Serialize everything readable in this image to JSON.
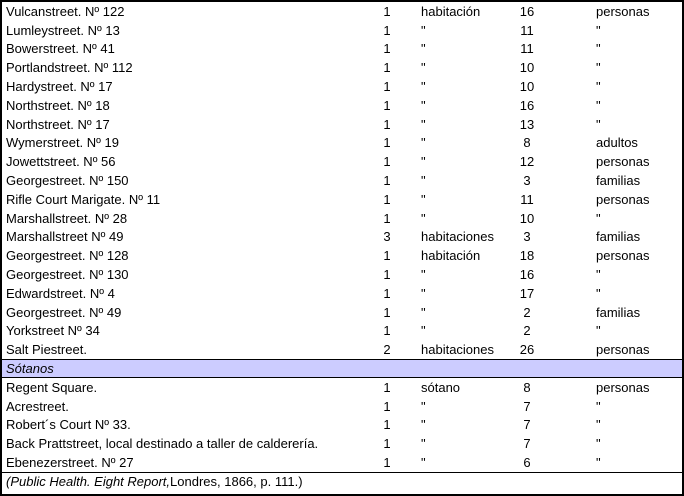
{
  "colors": {
    "background": "#ffffff",
    "text": "#000000",
    "border": "#000000",
    "section_header_bg": "#ccccff"
  },
  "table": {
    "main_rows": [
      {
        "place": "Vulcanstreet. Nº 122",
        "rooms_count": "1",
        "rooms_unit": "habitación",
        "occupants_count": "16",
        "occupants_unit": "personas"
      },
      {
        "place": "Lumleystreet. Nº 13",
        "rooms_count": "1",
        "rooms_unit": "\"",
        "occupants_count": "11",
        "occupants_unit": "\""
      },
      {
        "place": "Bowerstreet. Nº 41",
        "rooms_count": "1",
        "rooms_unit": "\"",
        "occupants_count": "11",
        "occupants_unit": "\""
      },
      {
        "place": "Portlandstreet. Nº 112",
        "rooms_count": "1",
        "rooms_unit": "\"",
        "occupants_count": "10",
        "occupants_unit": "\""
      },
      {
        "place": "Hardystreet. Nº 17",
        "rooms_count": "1",
        "rooms_unit": "\"",
        "occupants_count": "10",
        "occupants_unit": "\""
      },
      {
        "place": "Northstreet. Nº 18",
        "rooms_count": "1",
        "rooms_unit": "\"",
        "occupants_count": "16",
        "occupants_unit": "\""
      },
      {
        "place": "Northstreet. Nº 17",
        "rooms_count": "1",
        "rooms_unit": "\"",
        "occupants_count": "13",
        "occupants_unit": "\""
      },
      {
        "place": "Wymerstreet. Nº 19",
        "rooms_count": "1",
        "rooms_unit": "\"",
        "occupants_count": "8",
        "occupants_unit": "adultos"
      },
      {
        "place": "Jowettstreet. Nº 56",
        "rooms_count": "1",
        "rooms_unit": "\"",
        "occupants_count": "12",
        "occupants_unit": "personas"
      },
      {
        "place": "Georgestreet. Nº 150",
        "rooms_count": "1",
        "rooms_unit": "\"",
        "occupants_count": "3",
        "occupants_unit": "familias"
      },
      {
        "place": "Rifle Court Marigate. Nº 11",
        "rooms_count": "1",
        "rooms_unit": "\"",
        "occupants_count": "11",
        "occupants_unit": "personas"
      },
      {
        "place": "Marshallstreet. Nº 28",
        "rooms_count": "1",
        "rooms_unit": "\"",
        "occupants_count": "10",
        "occupants_unit": "\""
      },
      {
        "place": "Marshallstreet Nº 49",
        "rooms_count": "3",
        "rooms_unit": "habitaciones",
        "occupants_count": "3",
        "occupants_unit": "familias"
      },
      {
        "place": "Georgestreet. Nº 128",
        "rooms_count": "1",
        "rooms_unit": "habitación",
        "occupants_count": "18",
        "occupants_unit": "personas"
      },
      {
        "place": "Georgestreet. Nº 130",
        "rooms_count": "1",
        "rooms_unit": "\"",
        "occupants_count": "16",
        "occupants_unit": "\""
      },
      {
        "place": "Edwardstreet. Nº 4",
        "rooms_count": "1",
        "rooms_unit": "\"",
        "occupants_count": "17",
        "occupants_unit": "\""
      },
      {
        "place": "Georgestreet. Nº 49",
        "rooms_count": "1",
        "rooms_unit": "\"",
        "occupants_count": "2",
        "occupants_unit": "familias"
      },
      {
        "place": "Yorkstreet Nº 34",
        "rooms_count": "1",
        "rooms_unit": "\"",
        "occupants_count": "2",
        "occupants_unit": "\""
      },
      {
        "place": "Salt Piestreet.",
        "rooms_count": "2",
        "rooms_unit": "habitaciones",
        "occupants_count": "26",
        "occupants_unit": "personas"
      }
    ],
    "sotanos_header": "Sótanos",
    "sotanos_rows": [
      {
        "place": "Regent Square.",
        "rooms_count": "1",
        "rooms_unit": "sótano",
        "occupants_count": "8",
        "occupants_unit": "personas"
      },
      {
        "place": "Acrestreet.",
        "rooms_count": "1",
        "rooms_unit": "\"",
        "occupants_count": "7",
        "occupants_unit": "\""
      },
      {
        "place": "Robert´s Court Nº 33.",
        "rooms_count": "1",
        "rooms_unit": "\"",
        "occupants_count": "7",
        "occupants_unit": "\""
      },
      {
        "place": "Back Prattstreet, local destinado a taller de calderería.",
        "rooms_count": "1",
        "rooms_unit": "\"",
        "occupants_count": "7",
        "occupants_unit": "\""
      },
      {
        "place": "Ebenezerstreet. Nº 27",
        "rooms_count": "1",
        "rooms_unit": "\"",
        "occupants_count": "6",
        "occupants_unit": "\""
      }
    ],
    "footer_italic": "(Public Health. Eight Report,",
    "footer_regular": " Londres, 1866, p. 111.)"
  }
}
